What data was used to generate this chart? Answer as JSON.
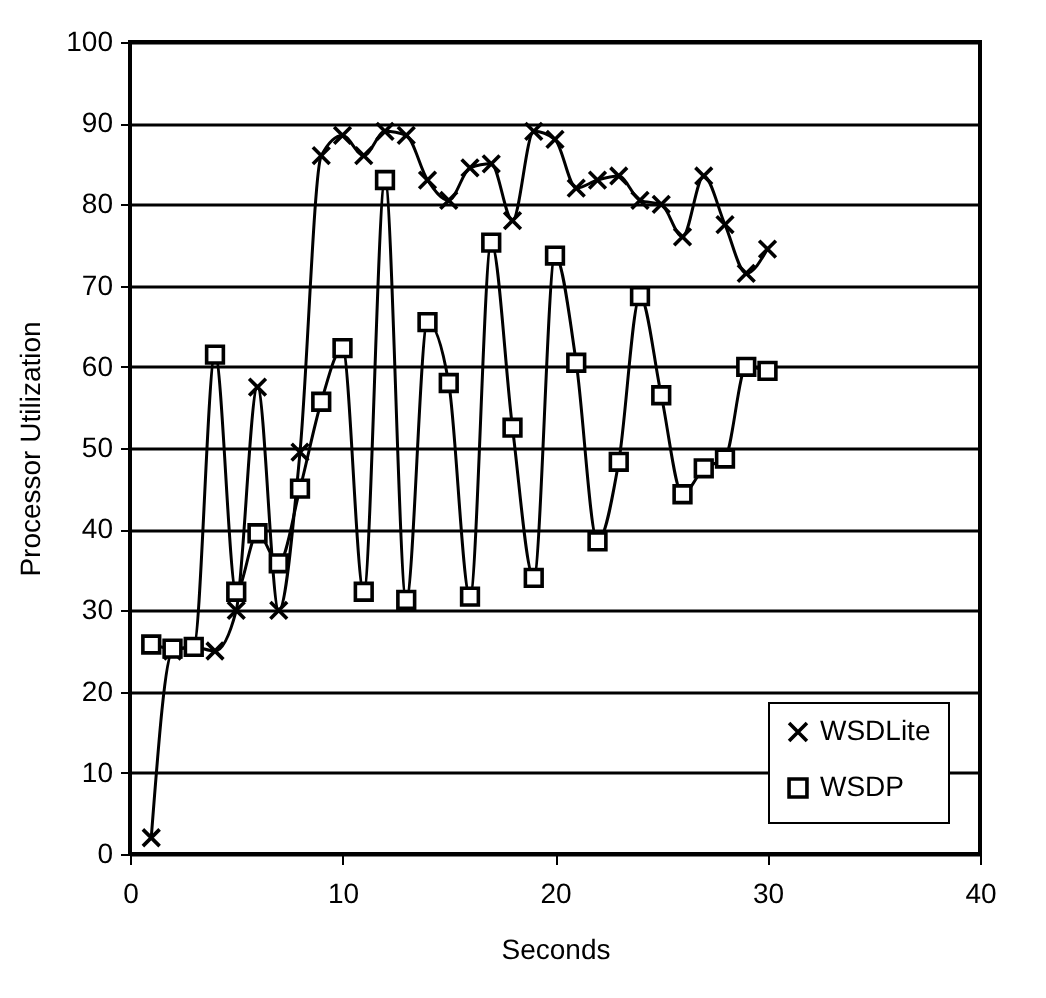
{
  "chart_data": {
    "type": "line",
    "xlabel": "Seconds",
    "ylabel": "Processor Utilization",
    "x": [
      1,
      2,
      3,
      4,
      5,
      6,
      7,
      8,
      9,
      10,
      11,
      12,
      13,
      14,
      15,
      16,
      17,
      18,
      19,
      20,
      21,
      22,
      23,
      24,
      25,
      26,
      27,
      28,
      29,
      30
    ],
    "xlim": [
      0,
      40
    ],
    "xticks": [
      0,
      10,
      20,
      30,
      40
    ],
    "ylim": [
      0,
      100
    ],
    "yticks": [
      0,
      10,
      20,
      30,
      40,
      50,
      60,
      70,
      80,
      90,
      100
    ],
    "grid": "y",
    "legend": "bottom right",
    "line_style": "solid",
    "series": [
      {
        "name": "WSDLite",
        "color": "#000000",
        "marker": "cross",
        "values": [
          2,
          25,
          25.5,
          25,
          30,
          57.5,
          30,
          49.5,
          86,
          88.5,
          86,
          89,
          88.5,
          83,
          80.5,
          84.5,
          85,
          78,
          89,
          88,
          82,
          83,
          83.5,
          80.5,
          80,
          76,
          83.5,
          77.5,
          71.5,
          74.5
        ]
      },
      {
        "name": "WSDP",
        "color": "#000000",
        "marker": "square",
        "values": [
          25.8,
          25.3,
          25.5,
          61.5,
          32.3,
          39.5,
          35.8,
          45,
          55.7,
          62.3,
          32.3,
          83,
          31.3,
          65.5,
          58,
          31.7,
          75.3,
          52.5,
          34,
          73.7,
          60.5,
          38.5,
          48.3,
          68.7,
          56.5,
          44.3,
          47.5,
          48.7,
          60,
          59.5
        ]
      }
    ]
  }
}
